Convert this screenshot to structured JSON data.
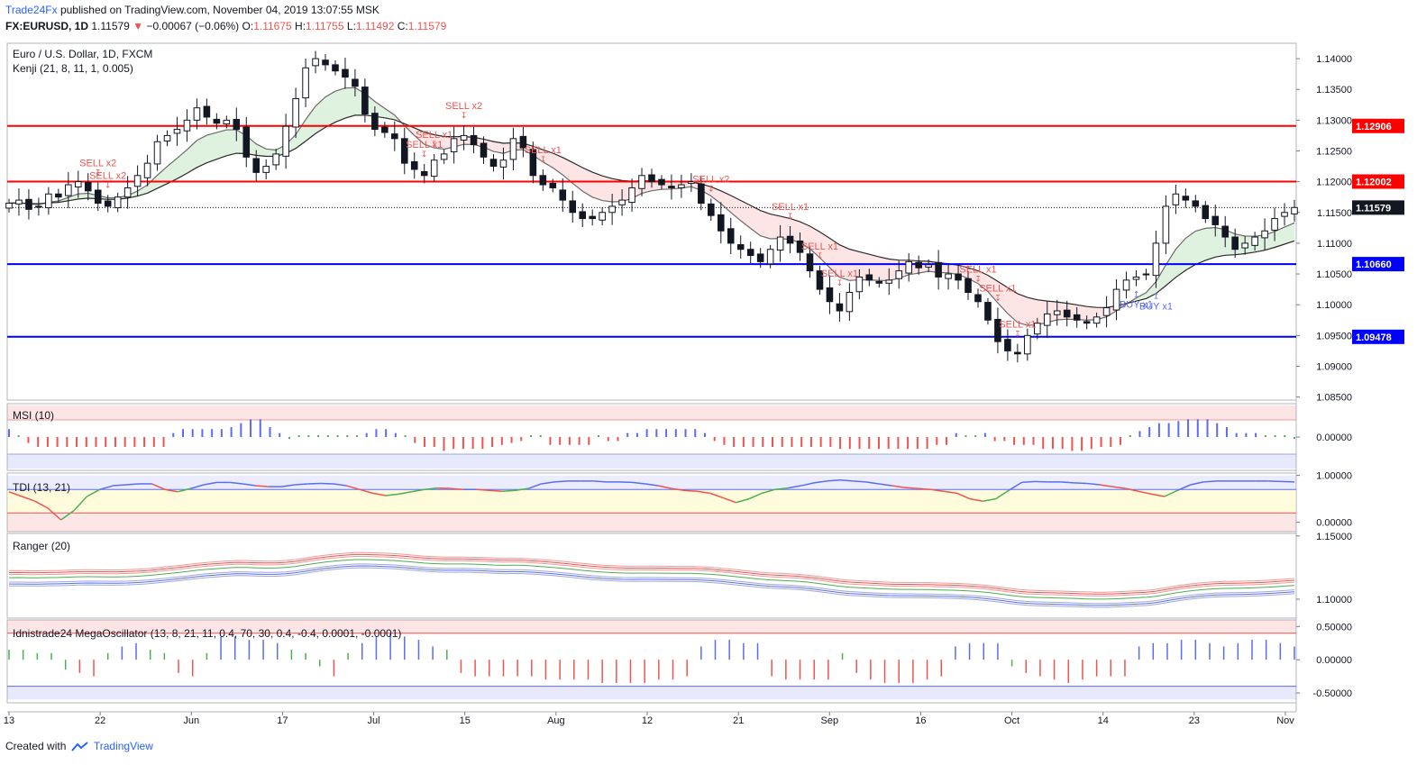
{
  "header": {
    "brand": "Trade24Fx",
    "published": "published on TradingView.com, November 04, 2019 13:07:55 MSK",
    "symbol": "FX:EURUSD, 1D",
    "last": "1.11579",
    "change": "−0.00067 (−0.06%)",
    "o_label": "O:",
    "o": "1.11675",
    "h_label": "H:",
    "h": "1.11755",
    "l_label": "L:",
    "l": "1.11492",
    "c_label": "C:",
    "c": "1.11579"
  },
  "footer": {
    "created_with": "Created with",
    "brand": "TradingView"
  },
  "colors": {
    "up": "#ffffff",
    "down": "#131722",
    "red_line": "#ff0000",
    "blue_line": "#0000ff",
    "sell": "#ef5350",
    "buy": "#5b6cf0",
    "green": "#4caf50"
  },
  "chart_data": [
    {
      "type": "candlestick",
      "title": "Euro / U.S. Dollar, 1D, FXCM",
      "indicator": "Kenji (21, 8, 11, 1, 0.005)",
      "ylim": [
        1.0845,
        1.1425
      ],
      "y_ticks": [
        "1.14000",
        "1.13500",
        "1.13000",
        "1.12500",
        "1.12000",
        "1.11500",
        "1.11000",
        "1.10500",
        "1.10000",
        "1.09500",
        "1.09000",
        "1.08500"
      ],
      "x_ticks": [
        "13",
        "22",
        "Jun",
        "17",
        "Jul",
        "15",
        "Aug",
        "12",
        "21",
        "Sep",
        "16",
        "Oct",
        "14",
        "23",
        "Nov"
      ],
      "horizontal_levels": [
        {
          "value": 1.12906,
          "label": "1.12906",
          "color": "#ff0000"
        },
        {
          "value": 1.12002,
          "label": "1.12002",
          "color": "#ff0000"
        },
        {
          "value": 1.1066,
          "label": "1.10660",
          "color": "#0000ff"
        },
        {
          "value": 1.09478,
          "label": "1.09478",
          "color": "#0000ff"
        }
      ],
      "last_price": {
        "value": 1.11579,
        "label": "1.11579"
      },
      "closes": [
        1.1165,
        1.117,
        1.1155,
        1.116,
        1.118,
        1.1175,
        1.1195,
        1.12,
        1.1185,
        1.1165,
        1.116,
        1.1175,
        1.119,
        1.121,
        1.123,
        1.1265,
        1.1275,
        1.1285,
        1.13,
        1.132,
        1.1305,
        1.1295,
        1.13,
        1.1285,
        1.124,
        1.1215,
        1.1225,
        1.1245,
        1.129,
        1.1335,
        1.1385,
        1.14,
        1.139,
        1.138,
        1.137,
        1.1355,
        1.131,
        1.1285,
        1.128,
        1.127,
        1.123,
        1.122,
        1.121,
        1.1235,
        1.1245,
        1.127,
        1.1275,
        1.126,
        1.124,
        1.1225,
        1.1235,
        1.127,
        1.1255,
        1.121,
        1.1195,
        1.119,
        1.117,
        1.115,
        1.114,
        1.114,
        1.115,
        1.116,
        1.117,
        1.119,
        1.121,
        1.12,
        1.1195,
        1.119,
        1.1195,
        1.12,
        1.1165,
        1.1145,
        1.112,
        1.11,
        1.109,
        1.108,
        1.107,
        1.109,
        1.111,
        1.11,
        1.1085,
        1.1055,
        1.1025,
        1.1005,
        1.099,
        1.102,
        1.1045,
        1.104,
        1.1035,
        1.104,
        1.1055,
        1.107,
        1.106,
        1.1065,
        1.1045,
        1.105,
        1.104,
        1.102,
        1.1005,
        1.0975,
        1.094,
        1.0925,
        1.092,
        1.095,
        1.097,
        1.0985,
        1.099,
        1.098,
        1.0975,
        1.097,
        1.098,
        1.0995,
        1.1025,
        1.104,
        1.1045,
        1.105,
        1.11,
        1.116,
        1.118,
        1.117,
        1.116,
        1.114,
        1.113,
        1.111,
        1.109,
        1.11,
        1.111,
        1.112,
        1.114,
        1.115,
        1.1158
      ]
    },
    {
      "type": "bar",
      "title": "MSI (10)",
      "ylim": [
        -0.0002,
        0.0002
      ],
      "y_ticks": [
        "0.00000"
      ],
      "values": [
        0.4,
        0,
        -0.3,
        -0.5,
        -0.5,
        -0.5,
        -0.5,
        -0.5,
        -0.5,
        -0.5,
        -0.5,
        -0.5,
        -0.5,
        -0.5,
        -0.5,
        -0.5,
        -0.5,
        0.2,
        0.4,
        0.4,
        0.4,
        0.4,
        0.4,
        0.5,
        0.7,
        0.9,
        0.9,
        0.5,
        0.2,
        -0.1,
        0.1,
        0.1,
        0.1,
        0.1,
        0.1,
        0.1,
        0.1,
        0.2,
        0.4,
        0.4,
        0.2,
        0.1,
        -0.3,
        -0.5,
        -0.5,
        -0.7,
        -0.6,
        -0.6,
        -0.6,
        -0.6,
        -0.5,
        -0.4,
        -0.3,
        -0.2,
        0.1,
        0,
        -0.4,
        -0.4,
        -0.4,
        -0.4,
        -0.4,
        0.1,
        -0.2,
        -0.2,
        0.2,
        0.2,
        0.4,
        0.4,
        0.4,
        0.4,
        0.4,
        0.4,
        0.2,
        -0.2,
        -0.4,
        -0.5,
        -0.5,
        -0.5,
        -0.5,
        -0.5,
        -0.5,
        -0.5,
        -0.5,
        -0.5,
        -0.5,
        -0.5,
        -0.6,
        -0.6,
        -0.6,
        -0.6,
        -0.6,
        -0.6,
        -0.6,
        -0.6,
        -0.6,
        -0.6,
        -0.4,
        -0.4,
        0.2,
        0.1,
        0.1,
        0.2,
        -0.2,
        -0.2,
        -0.4,
        -0.4,
        -0.4,
        -0.6,
        -0.6,
        -0.6,
        -0.7,
        -0.7,
        -0.6,
        -0.5,
        -0.5,
        -0.4,
        0.1,
        0.3,
        0.5,
        0.7,
        0.7,
        0.8,
        0.9,
        0.9,
        0.9,
        0.7,
        0.5,
        0.2,
        0.2,
        0.2,
        0.1,
        0.1,
        0.1,
        -0.1
      ]
    },
    {
      "type": "line",
      "title": "TDI (13, 21)",
      "ylim": [
        -0.2,
        1.05
      ],
      "y_ticks": [
        "1.00000",
        "0.00000"
      ],
      "values": [
        0.65,
        0.55,
        0.45,
        0.3,
        0.05,
        0.25,
        0.55,
        0.7,
        0.78,
        0.8,
        0.82,
        0.82,
        0.7,
        0.65,
        0.72,
        0.8,
        0.85,
        0.85,
        0.82,
        0.78,
        0.76,
        0.76,
        0.8,
        0.82,
        0.83,
        0.82,
        0.78,
        0.7,
        0.62,
        0.57,
        0.6,
        0.65,
        0.7,
        0.73,
        0.72,
        0.7,
        0.7,
        0.68,
        0.66,
        0.68,
        0.72,
        0.82,
        0.86,
        0.88,
        0.88,
        0.88,
        0.86,
        0.86,
        0.85,
        0.82,
        0.78,
        0.72,
        0.68,
        0.66,
        0.62,
        0.52,
        0.42,
        0.5,
        0.62,
        0.7,
        0.73,
        0.78,
        0.84,
        0.88,
        0.9,
        0.88,
        0.86,
        0.82,
        0.78,
        0.74,
        0.72,
        0.7,
        0.66,
        0.62,
        0.5,
        0.45,
        0.5,
        0.68,
        0.85,
        0.87,
        0.86,
        0.86,
        0.84,
        0.83,
        0.8,
        0.76,
        0.72,
        0.66,
        0.6,
        0.55,
        0.68,
        0.8,
        0.86,
        0.88,
        0.88,
        0.88,
        0.88,
        0.88,
        0.87,
        0.86
      ]
    },
    {
      "type": "line",
      "title": "Ranger (20)",
      "ylim": [
        1.085,
        1.152
      ],
      "y_ticks": [
        "1.15000",
        "1.10000"
      ],
      "series_source": "price bands"
    },
    {
      "type": "bar",
      "title": "Idnistrade24 MegaOscillator (13, 8, 21, 11, 0.4, 70, 30, 0.4, -0.4, 0.0001, -0.0001)",
      "ylim": [
        -0.65,
        0.6
      ],
      "y_ticks": [
        "0.50000",
        "0.00000",
        "-0.50000"
      ],
      "values": [
        0.15,
        0.15,
        0.1,
        0.1,
        -0.15,
        -0.2,
        -0.25,
        0.1,
        0.2,
        0.25,
        0.15,
        0.1,
        -0.2,
        -0.25,
        0.1,
        0.35,
        0.35,
        0.3,
        0.3,
        0.25,
        0.15,
        0.1,
        -0.1,
        -0.25,
        0.1,
        0.25,
        0.35,
        0.4,
        0.35,
        0.3,
        0.2,
        0.15,
        -0.2,
        -0.25,
        -0.25,
        -0.25,
        -0.25,
        -0.25,
        -0.3,
        -0.3,
        -0.3,
        -0.3,
        -0.35,
        -0.35,
        -0.35,
        -0.35,
        -0.3,
        -0.3,
        -0.25,
        0.2,
        0.3,
        0.3,
        0.25,
        0.25,
        -0.25,
        -0.3,
        -0.3,
        -0.3,
        -0.3,
        0.1,
        -0.2,
        -0.3,
        -0.35,
        -0.35,
        -0.35,
        -0.3,
        -0.25,
        0.2,
        0.25,
        0.25,
        0.25,
        -0.1,
        -0.2,
        -0.25,
        -0.3,
        -0.35,
        -0.3,
        -0.25,
        -0.25,
        -0.25,
        0.2,
        0.25,
        0.25,
        0.3,
        0.3,
        0.25,
        0.2,
        0.25,
        0.3,
        0.3,
        0.25,
        0.2
      ]
    }
  ],
  "signals": {
    "sell_labels": [
      {
        "text": "SELL x2",
        "i": 9
      },
      {
        "text": "SELL x2",
        "i": 10
      },
      {
        "text": "SELL x1",
        "i": 42
      },
      {
        "text": "SELL x1",
        "i": 43
      },
      {
        "text": "SELL x2",
        "i": 46
      },
      {
        "text": "SELL x1",
        "i": 54
      },
      {
        "text": "SELL x2",
        "i": 71
      },
      {
        "text": "SELL x1",
        "i": 79
      },
      {
        "text": "SELL x1",
        "i": 82
      },
      {
        "text": "SELL x1",
        "i": 84
      },
      {
        "text": "SELL x1",
        "i": 98
      },
      {
        "text": "SELL x1",
        "i": 100
      },
      {
        "text": "SELL x1",
        "i": 102
      }
    ],
    "buy_labels": [
      {
        "text": "BUY x1",
        "i": 114
      },
      {
        "text": "BUY x1",
        "i": 116
      }
    ]
  }
}
